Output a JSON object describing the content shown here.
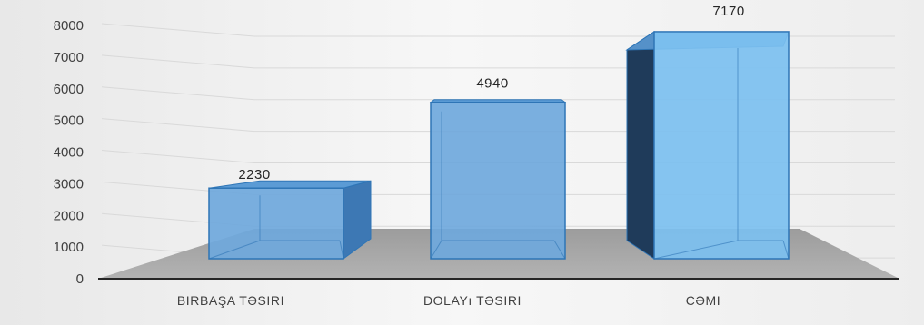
{
  "chart_data": {
    "type": "bar",
    "title": "",
    "xlabel": "",
    "ylabel": "",
    "categories": [
      "BIRBAŞA TƏSIRI",
      "DOLAYı TƏSIRI",
      "CƏMI"
    ],
    "values": [
      2230,
      4940,
      7170
    ],
    "data_labels": [
      "2230",
      "4940",
      "7170"
    ],
    "ylim": [
      0,
      8000
    ],
    "yticks": [
      "0",
      "1000",
      "2000",
      "3000",
      "4000",
      "5000",
      "6000",
      "7000",
      "8000"
    ],
    "grid": true,
    "legend": "none",
    "style": "3d-column",
    "colors": {
      "bar_front": "#6fa8dc",
      "bar_front_last": "#7cc0f0",
      "bar_top": "#5b9bd5",
      "bar_side": "#3d78b4",
      "bar_side_last": "#1f3b5a",
      "bar_edge": "#2e75b6",
      "floor": "#a6a6a6",
      "gridline": "#d9d9d9",
      "backdrop": "#f2f2f2"
    }
  }
}
